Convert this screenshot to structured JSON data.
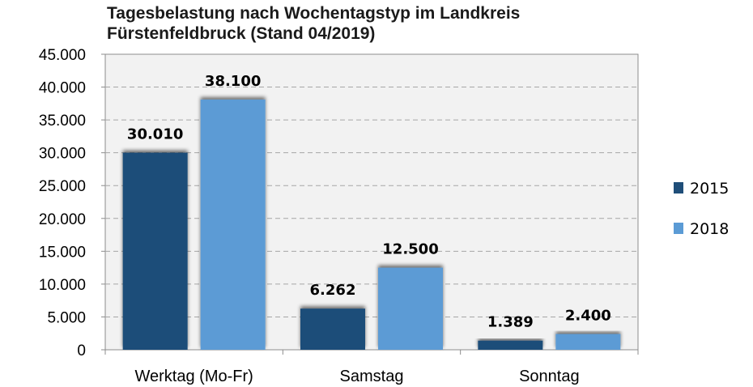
{
  "chart_data": {
    "type": "bar",
    "title_line1": "Tagesbelastung nach Wochentagstyp im Landkreis",
    "title_line2": "Fürstenfeldbruck (Stand 04/2019)",
    "categories": [
      "Werktag (Mo-Fr)",
      "Samstag",
      "Sonntag"
    ],
    "series": [
      {
        "name": "2015",
        "color": "#1f4e79",
        "values": [
          30010,
          6262,
          1389
        ],
        "labels": [
          "30.010",
          "6.262",
          "1.389"
        ]
      },
      {
        "name": "2018",
        "color": "#5b9bd5",
        "values": [
          38100,
          12500,
          2400
        ],
        "labels": [
          "38.100",
          "12.500",
          "2.400"
        ]
      }
    ],
    "ylim": [
      0,
      45000
    ],
    "yticks": [
      0,
      5000,
      10000,
      15000,
      20000,
      25000,
      30000,
      35000,
      40000,
      45000
    ],
    "ytick_labels": [
      "0",
      "5.000",
      "10.000",
      "15.000",
      "20.000",
      "25.000",
      "30.000",
      "35.000",
      "40.000",
      "45.000"
    ],
    "grid": true,
    "legend_position": "right"
  }
}
